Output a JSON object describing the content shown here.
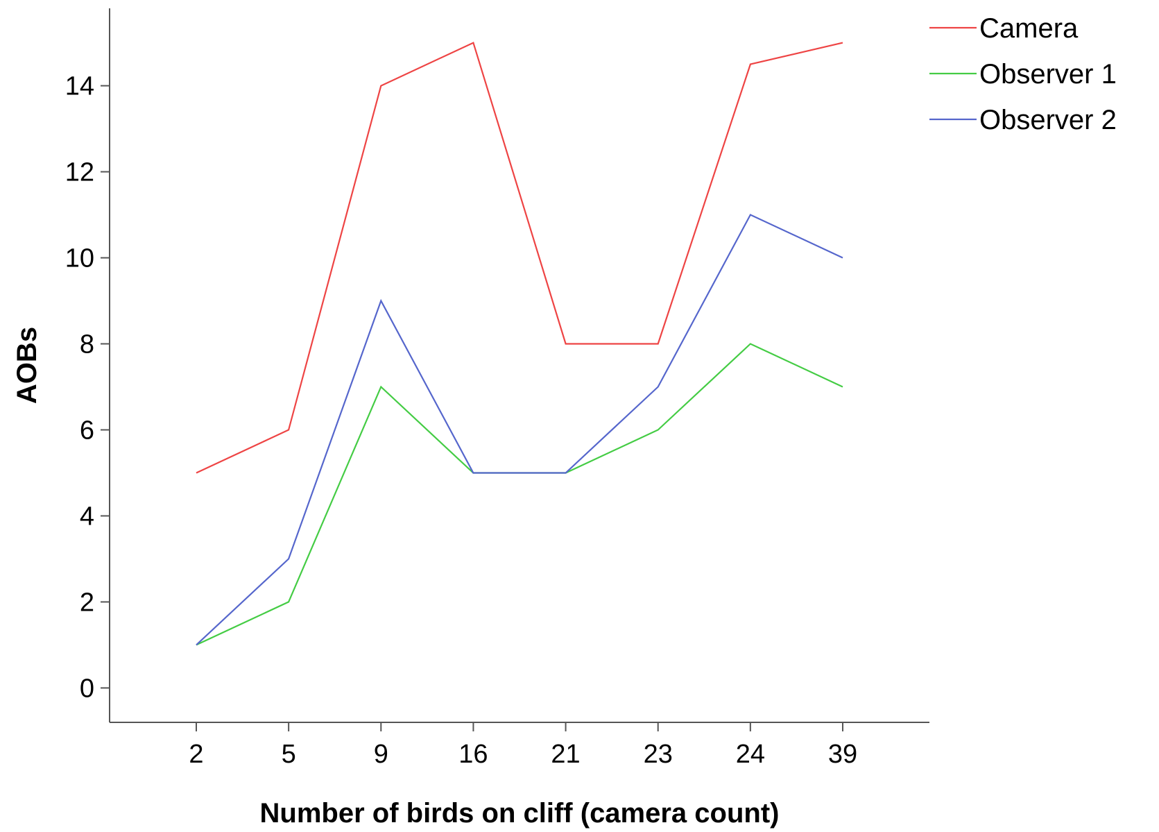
{
  "chart_data": {
    "type": "line",
    "categories": [
      "2",
      "5",
      "9",
      "16",
      "21",
      "23",
      "24",
      "39"
    ],
    "xlabel": "Number of birds on cliff (camera count)",
    "ylabel": "AOBs",
    "ylim": [
      -0.8,
      15.8
    ],
    "yticks": [
      0,
      2,
      4,
      6,
      8,
      10,
      12,
      14
    ],
    "grid": false,
    "legend": "top-right",
    "series": [
      {
        "name": "Camera",
        "color": "#ee4444",
        "values": [
          5,
          6,
          14,
          15,
          8,
          8,
          14.5,
          15
        ]
      },
      {
        "name": "Observer 1",
        "color": "#44cc44",
        "values": [
          1,
          2,
          7,
          5,
          5,
          6,
          8,
          7
        ]
      },
      {
        "name": "Observer 2",
        "color": "#5566cc",
        "values": [
          1,
          3,
          9,
          5,
          5,
          7,
          11,
          10
        ]
      }
    ]
  }
}
